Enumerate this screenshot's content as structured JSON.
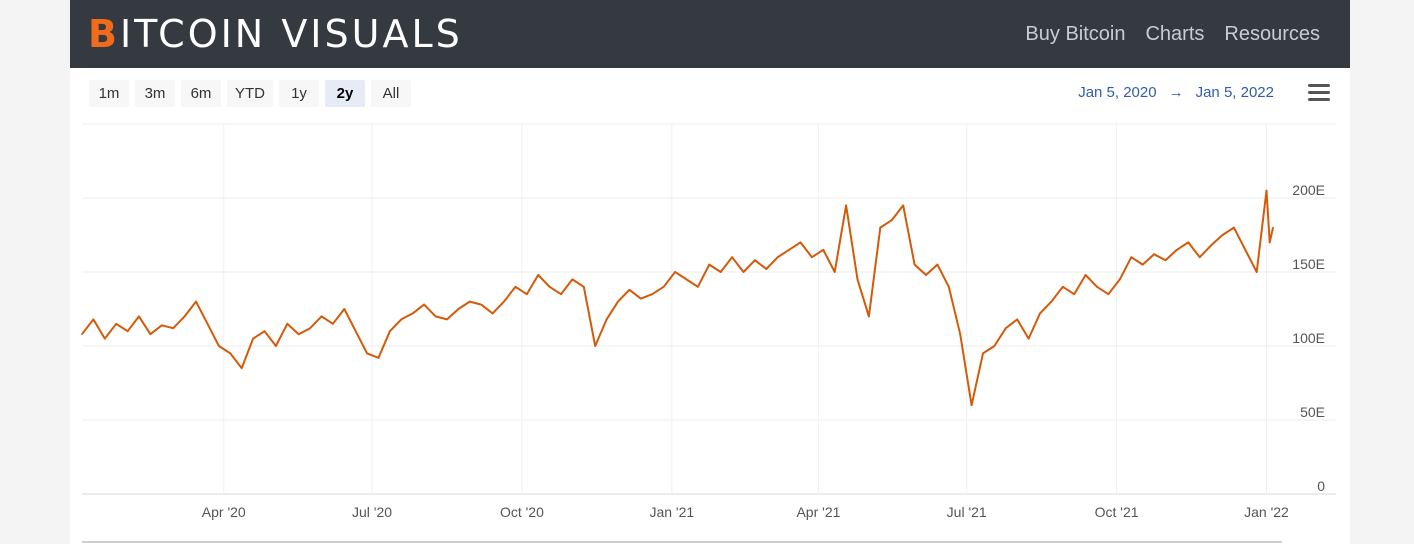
{
  "brand": {
    "accent_letter": "B",
    "rest": "ITCOIN VISUALS"
  },
  "nav": {
    "links": [
      "Buy Bitcoin",
      "Charts",
      "Resources"
    ]
  },
  "range_selector": {
    "buttons": [
      "1m",
      "3m",
      "6m",
      "YTD",
      "1y",
      "2y",
      "All"
    ],
    "active": "2y"
  },
  "date_range": {
    "from": "Jan 5, 2020",
    "arrow": "→",
    "to": "Jan 5, 2022"
  },
  "colors": {
    "line": "#d45a0a",
    "navbar": "#353a40",
    "brand_accent": "#f26b1d"
  },
  "chart_data": {
    "type": "line",
    "title": "",
    "xlabel": "",
    "ylabel": "",
    "x_range": [
      "2020-01-05",
      "2022-01-05"
    ],
    "ylim": [
      0,
      250
    ],
    "y_ticks": [
      {
        "value": 0,
        "label": "0"
      },
      {
        "value": 50,
        "label": "50E"
      },
      {
        "value": 100,
        "label": "100E"
      },
      {
        "value": 150,
        "label": "150E"
      },
      {
        "value": 200,
        "label": "200E"
      }
    ],
    "x_ticks": [
      {
        "date": "2020-04-01",
        "label": "Apr '20"
      },
      {
        "date": "2020-07-01",
        "label": "Jul '20"
      },
      {
        "date": "2020-10-01",
        "label": "Oct '20"
      },
      {
        "date": "2021-01-01",
        "label": "Jan '21"
      },
      {
        "date": "2021-04-01",
        "label": "Apr '21"
      },
      {
        "date": "2021-07-01",
        "label": "Jul '21"
      },
      {
        "date": "2021-10-01",
        "label": "Oct '21"
      },
      {
        "date": "2022-01-01",
        "label": "Jan '22"
      }
    ],
    "grid": true,
    "series": [
      {
        "points": [
          [
            "2020-01-05",
            108
          ],
          [
            "2020-01-12",
            118
          ],
          [
            "2020-01-19",
            105
          ],
          [
            "2020-01-26",
            115
          ],
          [
            "2020-02-02",
            110
          ],
          [
            "2020-02-09",
            120
          ],
          [
            "2020-02-16",
            108
          ],
          [
            "2020-02-23",
            114
          ],
          [
            "2020-03-01",
            112
          ],
          [
            "2020-03-08",
            120
          ],
          [
            "2020-03-15",
            130
          ],
          [
            "2020-03-22",
            115
          ],
          [
            "2020-03-29",
            100
          ],
          [
            "2020-04-05",
            95
          ],
          [
            "2020-04-12",
            85
          ],
          [
            "2020-04-19",
            105
          ],
          [
            "2020-04-26",
            110
          ],
          [
            "2020-05-03",
            100
          ],
          [
            "2020-05-10",
            115
          ],
          [
            "2020-05-17",
            108
          ],
          [
            "2020-05-24",
            112
          ],
          [
            "2020-05-31",
            120
          ],
          [
            "2020-06-07",
            115
          ],
          [
            "2020-06-14",
            125
          ],
          [
            "2020-06-21",
            110
          ],
          [
            "2020-06-28",
            95
          ],
          [
            "2020-07-05",
            92
          ],
          [
            "2020-07-12",
            110
          ],
          [
            "2020-07-19",
            118
          ],
          [
            "2020-07-26",
            122
          ],
          [
            "2020-08-02",
            128
          ],
          [
            "2020-08-09",
            120
          ],
          [
            "2020-08-16",
            118
          ],
          [
            "2020-08-23",
            125
          ],
          [
            "2020-08-30",
            130
          ],
          [
            "2020-09-06",
            128
          ],
          [
            "2020-09-13",
            122
          ],
          [
            "2020-09-20",
            130
          ],
          [
            "2020-09-27",
            140
          ],
          [
            "2020-10-04",
            135
          ],
          [
            "2020-10-11",
            148
          ],
          [
            "2020-10-18",
            140
          ],
          [
            "2020-10-25",
            135
          ],
          [
            "2020-11-01",
            145
          ],
          [
            "2020-11-08",
            140
          ],
          [
            "2020-11-15",
            100
          ],
          [
            "2020-11-22",
            118
          ],
          [
            "2020-11-29",
            130
          ],
          [
            "2020-12-06",
            138
          ],
          [
            "2020-12-13",
            132
          ],
          [
            "2020-12-20",
            135
          ],
          [
            "2020-12-27",
            140
          ],
          [
            "2021-01-03",
            150
          ],
          [
            "2021-01-10",
            145
          ],
          [
            "2021-01-17",
            140
          ],
          [
            "2021-01-24",
            155
          ],
          [
            "2021-01-31",
            150
          ],
          [
            "2021-02-07",
            160
          ],
          [
            "2021-02-14",
            150
          ],
          [
            "2021-02-21",
            158
          ],
          [
            "2021-02-28",
            152
          ],
          [
            "2021-03-07",
            160
          ],
          [
            "2021-03-14",
            165
          ],
          [
            "2021-03-21",
            170
          ],
          [
            "2021-03-28",
            160
          ],
          [
            "2021-04-04",
            165
          ],
          [
            "2021-04-11",
            150
          ],
          [
            "2021-04-18",
            195
          ],
          [
            "2021-04-25",
            145
          ],
          [
            "2021-05-02",
            120
          ],
          [
            "2021-05-09",
            180
          ],
          [
            "2021-05-16",
            185
          ],
          [
            "2021-05-23",
            195
          ],
          [
            "2021-05-30",
            155
          ],
          [
            "2021-06-06",
            148
          ],
          [
            "2021-06-13",
            155
          ],
          [
            "2021-06-20",
            140
          ],
          [
            "2021-06-27",
            108
          ],
          [
            "2021-07-04",
            60
          ],
          [
            "2021-07-11",
            95
          ],
          [
            "2021-07-18",
            100
          ],
          [
            "2021-07-25",
            112
          ],
          [
            "2021-08-01",
            118
          ],
          [
            "2021-08-08",
            105
          ],
          [
            "2021-08-15",
            122
          ],
          [
            "2021-08-22",
            130
          ],
          [
            "2021-08-29",
            140
          ],
          [
            "2021-09-05",
            135
          ],
          [
            "2021-09-12",
            148
          ],
          [
            "2021-09-19",
            140
          ],
          [
            "2021-09-26",
            135
          ],
          [
            "2021-10-03",
            145
          ],
          [
            "2021-10-10",
            160
          ],
          [
            "2021-10-17",
            155
          ],
          [
            "2021-10-24",
            162
          ],
          [
            "2021-10-31",
            158
          ],
          [
            "2021-11-07",
            165
          ],
          [
            "2021-11-14",
            170
          ],
          [
            "2021-11-21",
            160
          ],
          [
            "2021-11-28",
            168
          ],
          [
            "2021-12-05",
            175
          ],
          [
            "2021-12-12",
            180
          ],
          [
            "2021-12-19",
            165
          ],
          [
            "2021-12-26",
            150
          ],
          [
            "2022-01-01",
            205
          ],
          [
            "2022-01-03",
            170
          ],
          [
            "2022-01-05",
            180
          ]
        ]
      }
    ]
  }
}
